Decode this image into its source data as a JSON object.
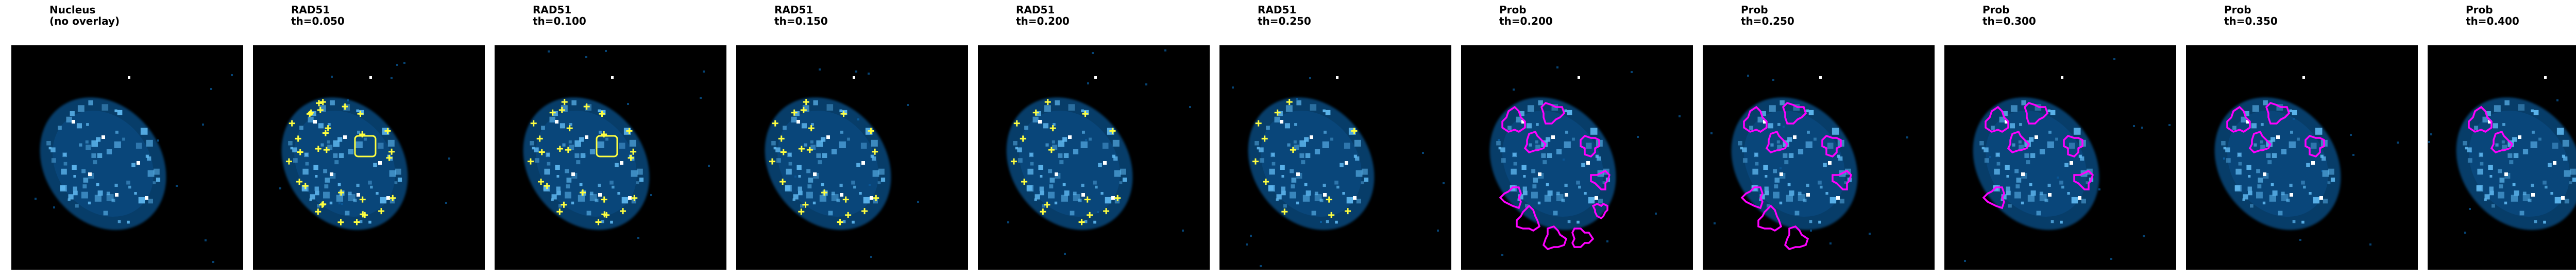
{
  "panels": [
    {
      "title_line1": "Nucleus",
      "title_line2": "(no overlay)",
      "overlay": "none"
    },
    {
      "title_line1": "RAD51",
      "title_line2": "th=0.050",
      "overlay": "rad51",
      "threshold": 0.05
    },
    {
      "title_line1": "RAD51",
      "title_line2": "th=0.100",
      "overlay": "rad51",
      "threshold": 0.1
    },
    {
      "title_line1": "RAD51",
      "title_line2": "th=0.150",
      "overlay": "rad51",
      "threshold": 0.15
    },
    {
      "title_line1": "RAD51",
      "title_line2": "th=0.200",
      "overlay": "rad51",
      "threshold": 0.2
    },
    {
      "title_line1": "RAD51",
      "title_line2": "th=0.250",
      "overlay": "rad51",
      "threshold": 0.25
    },
    {
      "title_line1": "Prob",
      "title_line2": "th=0.200",
      "overlay": "prob",
      "threshold": 0.2
    },
    {
      "title_line1": "Prob",
      "title_line2": "th=0.250",
      "overlay": "prob",
      "threshold": 0.25
    },
    {
      "title_line1": "Prob",
      "title_line2": "th=0.300",
      "overlay": "prob",
      "threshold": 0.3
    },
    {
      "title_line1": "Prob",
      "title_line2": "th=0.350",
      "overlay": "prob",
      "threshold": 0.35
    },
    {
      "title_line1": "Prob",
      "title_line2": "th=0.400",
      "overlay": "prob",
      "threshold": 0.4
    }
  ],
  "colors": {
    "background": "#000000",
    "nucleus_blue": "#0a6fbf",
    "nucleus_bright": "#5fb8f0",
    "rad51_outline": "#ffff40",
    "prob_outline": "#ff00ff"
  }
}
